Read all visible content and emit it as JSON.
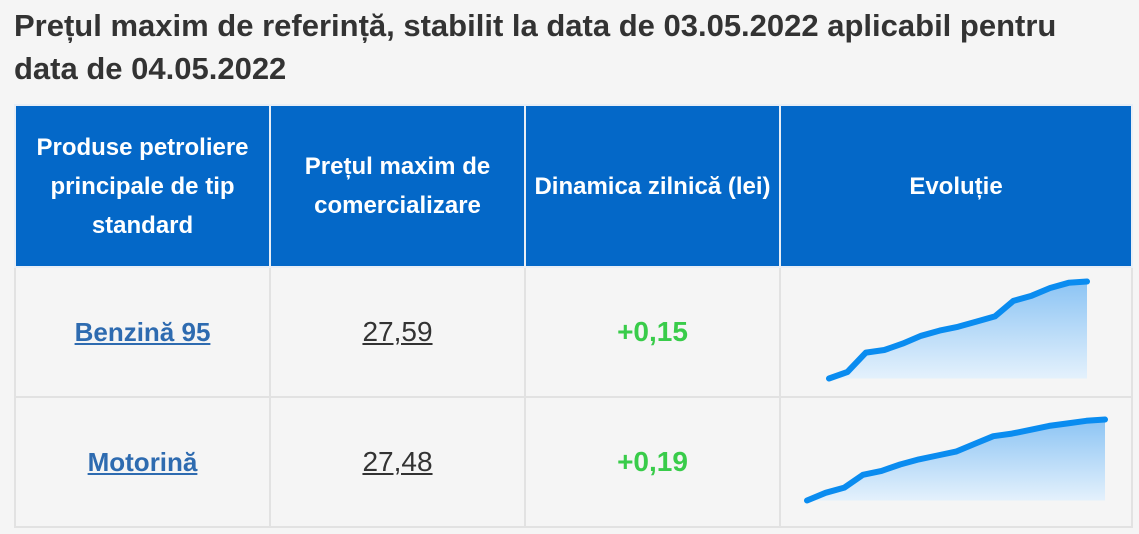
{
  "header": {
    "title": "Prețul maxim de referință, stabilit la data de 03.05.2022 aplicabil pentru data de 04.05.2022"
  },
  "table": {
    "columns": [
      "Produse petroliere principale de tip standard",
      "Prețul maxim de comercializare",
      "Dinamica zilnică (lei)",
      "Evoluție"
    ],
    "rows": [
      {
        "product": "Benzină 95",
        "price": "27,59",
        "change": "+0,15",
        "evolution": [
          0,
          5,
          20,
          22,
          27,
          33,
          37,
          40,
          44,
          48,
          60,
          64,
          70,
          74,
          75
        ]
      },
      {
        "product": "Motorină",
        "price": "27,48",
        "change": "+0,19",
        "evolution": [
          0,
          6,
          10,
          20,
          23,
          28,
          32,
          35,
          38,
          44,
          50,
          52,
          55,
          58,
          60,
          62,
          63
        ]
      }
    ]
  }
}
